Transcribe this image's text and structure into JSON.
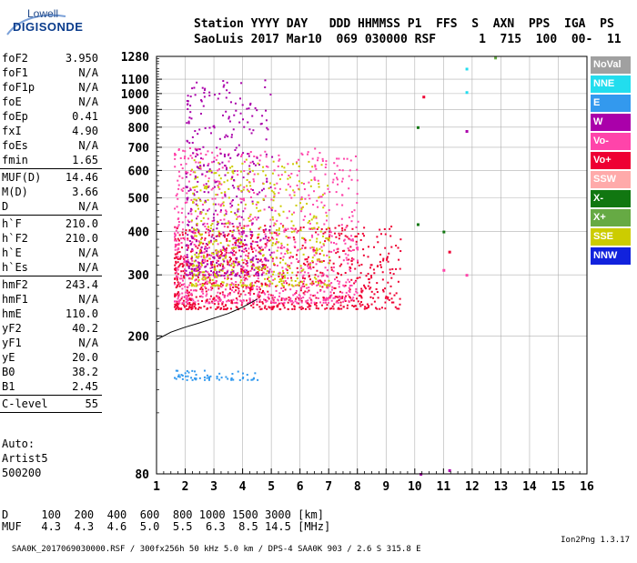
{
  "logo": {
    "line1": "Lowell",
    "line2": "DIGISONDE"
  },
  "header": {
    "labels": "Station YYYY DAY   DDD HHMMSS P1  FFS  S  AXN  PPS  IGA  PS",
    "values": "SaoLuis 2017 Mar10  069 030000 RSF      1  715  100  00-  11"
  },
  "params": [
    {
      "name": "foF2",
      "value": "3.950"
    },
    {
      "name": "foF1",
      "value": "N/A"
    },
    {
      "name": "foF1p",
      "value": "N/A"
    },
    {
      "name": "foE",
      "value": "N/A"
    },
    {
      "name": "foEp",
      "value": "0.41"
    },
    {
      "name": "fxI",
      "value": "4.90"
    },
    {
      "name": "foEs",
      "value": "N/A"
    },
    {
      "name": "fmin",
      "value": "1.65"
    },
    {
      "sep": true
    },
    {
      "name": "MUF(D)",
      "value": "14.46"
    },
    {
      "name": "M(D)",
      "value": "3.66"
    },
    {
      "name": "D",
      "value": "N/A"
    },
    {
      "sep": true
    },
    {
      "name": "h`F",
      "value": "210.0"
    },
    {
      "name": "h`F2",
      "value": "210.0"
    },
    {
      "name": "h`E",
      "value": "N/A"
    },
    {
      "name": "h`Es",
      "value": "N/A"
    },
    {
      "sep": true
    },
    {
      "name": "hmF2",
      "value": "243.4"
    },
    {
      "name": "hmF1",
      "value": "N/A"
    },
    {
      "name": "hmE",
      "value": "110.0"
    },
    {
      "name": "yF2",
      "value": "40.2"
    },
    {
      "name": "yF1",
      "value": "N/A"
    },
    {
      "name": "yE",
      "value": "20.0"
    },
    {
      "name": "B0",
      "value": "38.2"
    },
    {
      "name": "B1",
      "value": "2.45"
    },
    {
      "sep": true
    },
    {
      "name": "C-level",
      "value": "55"
    },
    {
      "sep": true
    }
  ],
  "auto": {
    "line1": "Auto:",
    "line2": "Artist5",
    "line3": "500200"
  },
  "legend": [
    {
      "label": "NoVal",
      "color": "#a0a0a0"
    },
    {
      "label": "NNE",
      "color": "#22ddee"
    },
    {
      "label": "E",
      "color": "#3399ee"
    },
    {
      "label": "W",
      "color": "#aa00aa"
    },
    {
      "label": "Vo-",
      "color": "#ff44aa"
    },
    {
      "label": "Vo+",
      "color": "#ee0033"
    },
    {
      "label": "SSW",
      "color": "#ffaaaa"
    },
    {
      "label": "X-",
      "color": "#117711"
    },
    {
      "label": "X+",
      "color": "#66aa44"
    },
    {
      "label": "SSE",
      "color": "#cccc00"
    },
    {
      "label": "NNW",
      "color": "#1122dd"
    }
  ],
  "muf_table": {
    "d_line": "D     100  200  400  600  800 1000 1500 3000 [km]",
    "muf_line": "MUF   4.3  4.3  4.6  5.0  5.5  6.3  8.5 14.5 [MHz]"
  },
  "footer": {
    "left": "SAA0K_2017069030000.RSF / 300fx256h 50 kHz 5.0 km / DPS-4 SAA0K 903 / 2.6 S 315.8 E",
    "right": "Ion2Png 1.3.17"
  },
  "chart_data": {
    "type": "scatter",
    "xlim": [
      1,
      16
    ],
    "ylim": [
      80,
      1280
    ],
    "y_scale": "log",
    "x_ticks": [
      "1",
      "2",
      "3",
      "4",
      "5",
      "6",
      "7",
      "8",
      "9",
      "10",
      "11",
      "12",
      "13",
      "14",
      "15",
      "16"
    ],
    "y_ticks": [
      80,
      200,
      300,
      400,
      500,
      600,
      700,
      800,
      900,
      1000,
      1100,
      1280
    ],
    "grid": true,
    "legend_position": "right",
    "trace_curve": {
      "x": [
        1.0,
        1.5,
        2.0,
        2.5,
        3.0,
        3.5,
        4.0,
        4.5
      ],
      "y": [
        195,
        205,
        212,
        218,
        225,
        232,
        242,
        255
      ]
    },
    "clusters": [
      {
        "x": [
          1.6,
          9.5
        ],
        "y": [
          240,
          420
        ],
        "series": "Vo+",
        "density": "high"
      },
      {
        "x": [
          1.6,
          8.0
        ],
        "y": [
          250,
          700
        ],
        "series": "Vo-",
        "density": "high"
      },
      {
        "x": [
          2.0,
          5.0
        ],
        "y": [
          300,
          1100
        ],
        "series": "W",
        "density": "medium"
      },
      {
        "x": [
          2.2,
          7.0
        ],
        "y": [
          280,
          650
        ],
        "series": "SSE",
        "density": "medium"
      },
      {
        "x": [
          1.6,
          4.5
        ],
        "y": [
          150,
          160
        ],
        "series": "E",
        "density": "low"
      }
    ],
    "isolated_points": [
      {
        "x": 12.8,
        "y": 1270,
        "series": "X+"
      },
      {
        "x": 11.8,
        "y": 1180,
        "series": "NNE"
      },
      {
        "x": 11.8,
        "y": 1010,
        "series": "NNE"
      },
      {
        "x": 10.3,
        "y": 980,
        "series": "Vo+"
      },
      {
        "x": 10.1,
        "y": 800,
        "series": "X-"
      },
      {
        "x": 11.8,
        "y": 780,
        "series": "W"
      },
      {
        "x": 10.1,
        "y": 420,
        "series": "X-"
      },
      {
        "x": 11.0,
        "y": 400,
        "series": "X-"
      },
      {
        "x": 11.2,
        "y": 350,
        "series": "Vo+"
      },
      {
        "x": 11.0,
        "y": 310,
        "series": "Vo-"
      },
      {
        "x": 11.8,
        "y": 300,
        "series": "Vo-"
      },
      {
        "x": 10.2,
        "y": 80,
        "series": "W"
      },
      {
        "x": 11.2,
        "y": 82,
        "series": "W"
      }
    ]
  }
}
